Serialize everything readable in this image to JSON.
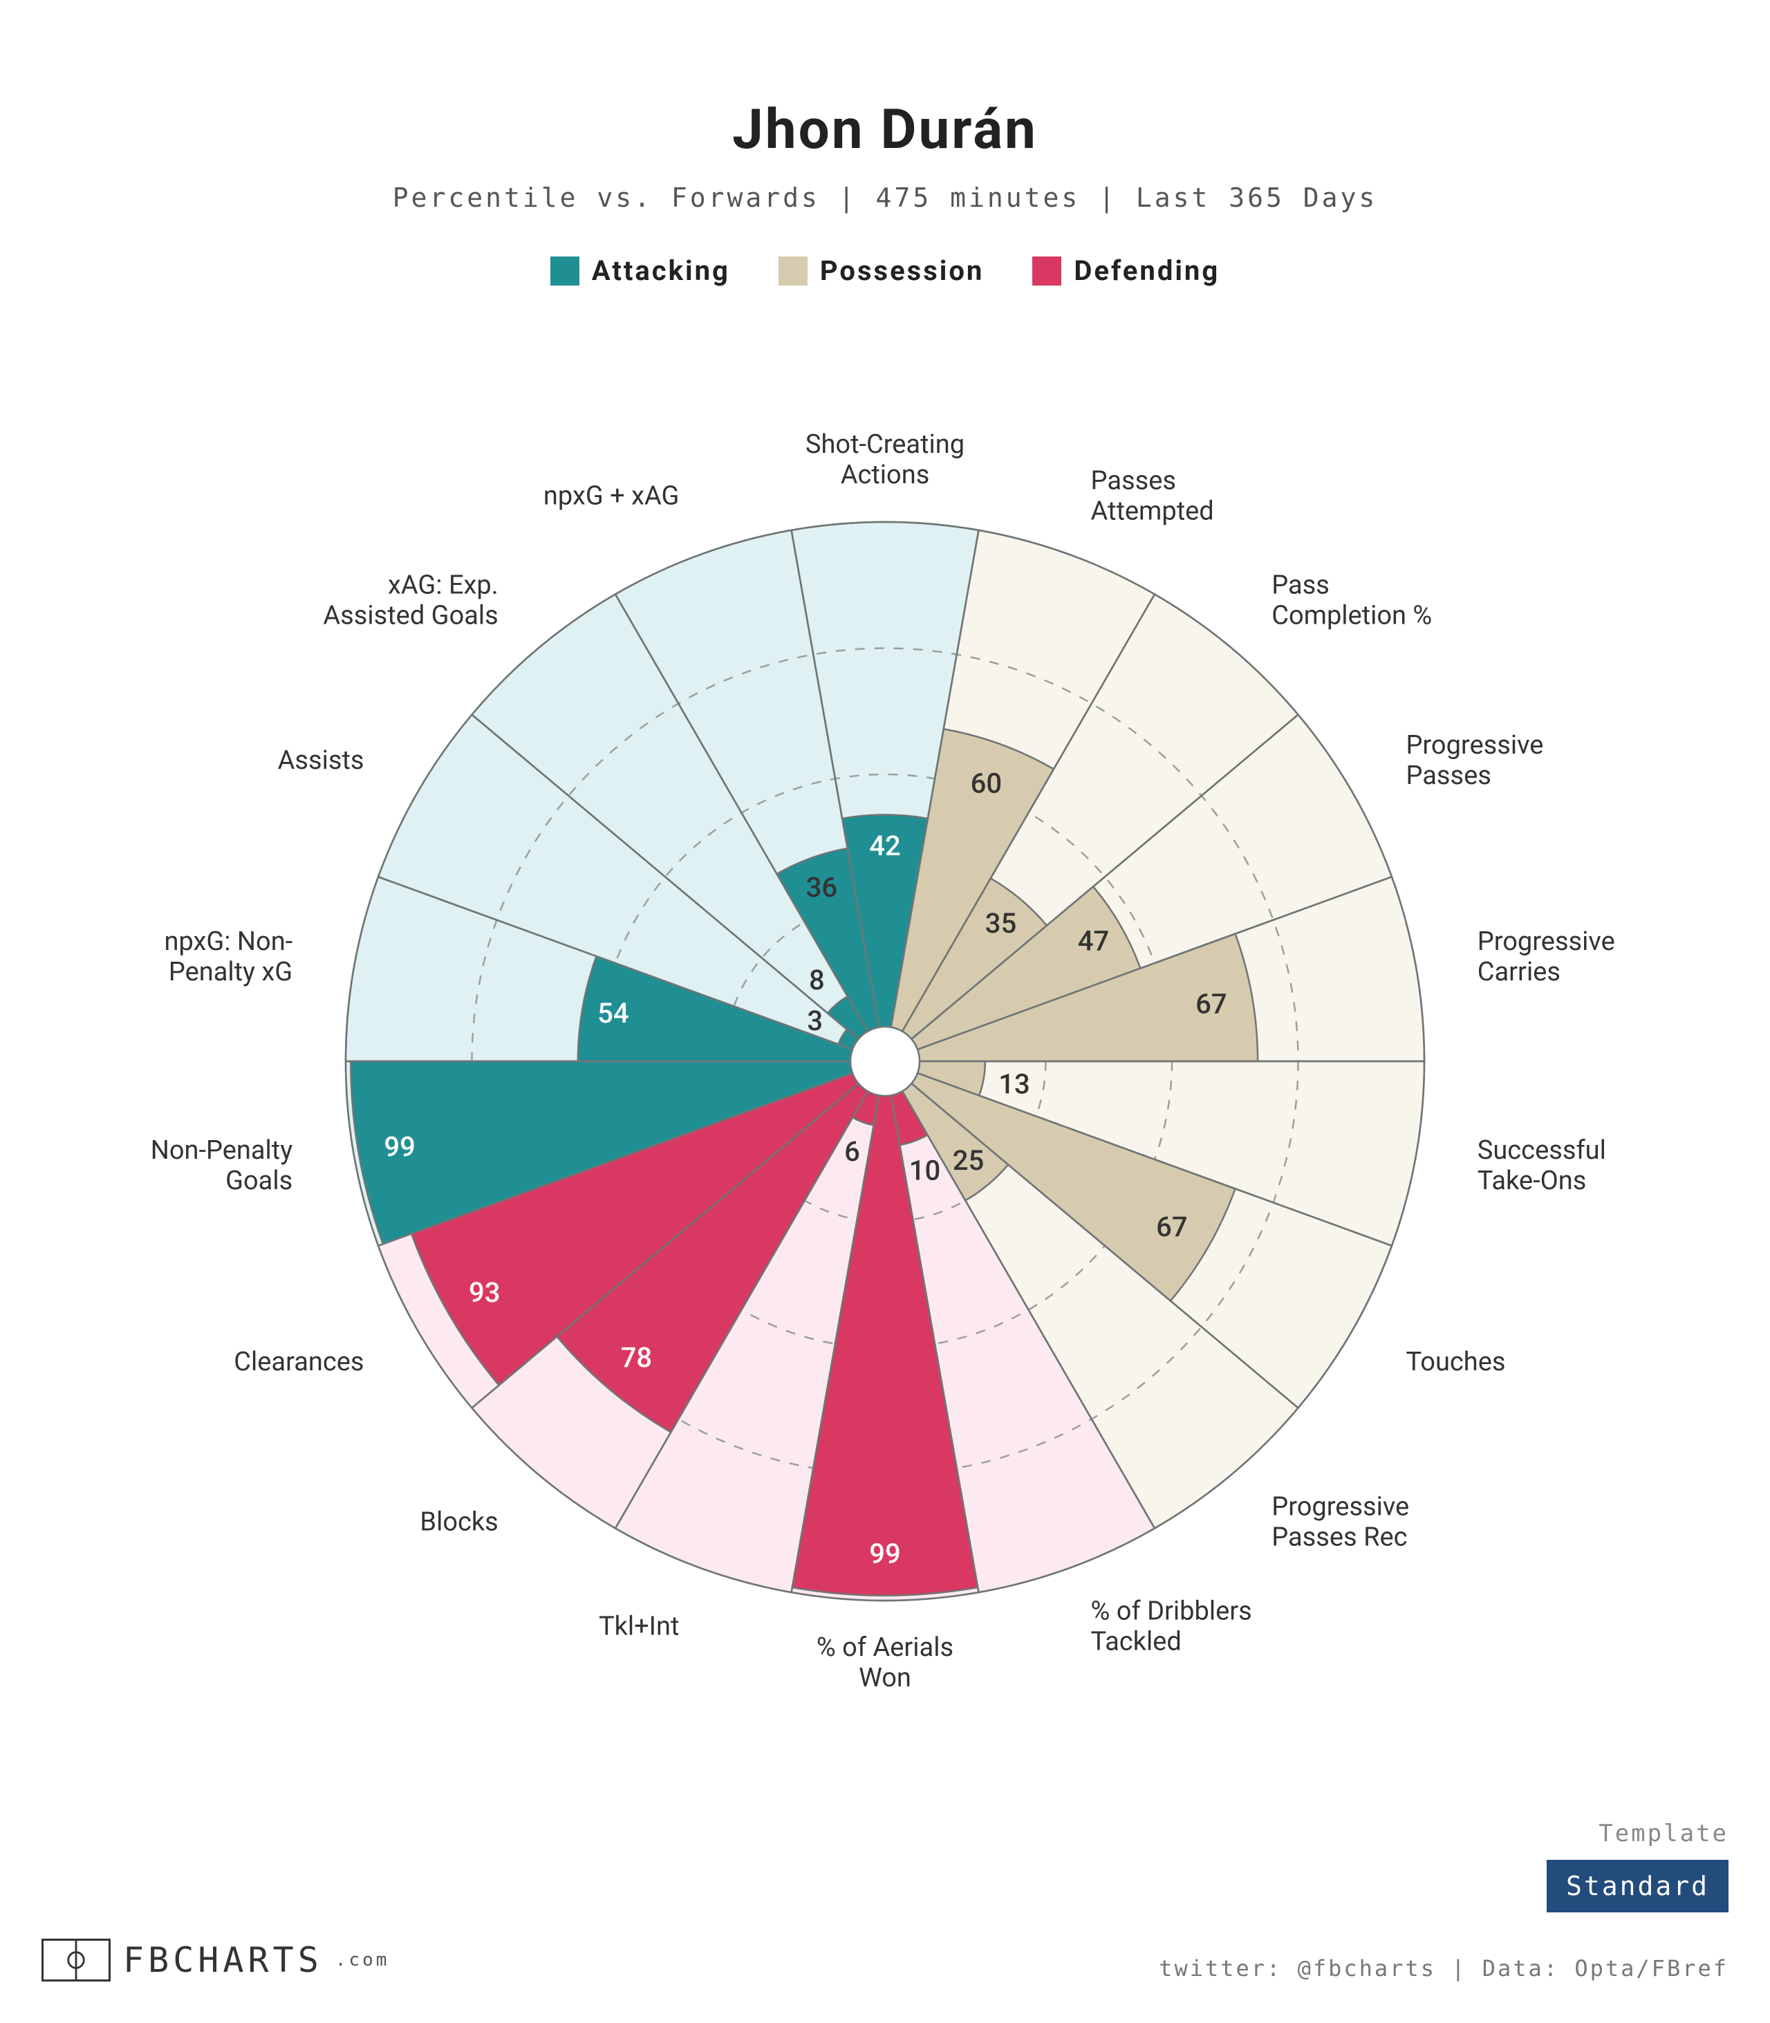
{
  "title": "Jhon Durán",
  "subtitle": "Percentile vs. Forwards | 475 minutes | Last 365 Days",
  "legend": [
    {
      "label": "Attacking",
      "color": "#1f8f94"
    },
    {
      "label": "Possession",
      "color": "#d6cbae"
    },
    {
      "label": "Defending",
      "color": "#d93862"
    }
  ],
  "chart": {
    "type": "polar-bar-pizza",
    "background": "#ffffff",
    "outer_radius": 780,
    "inner_hole_radius": 50,
    "grid_color": "#9aa0a0",
    "grid_dash": "14,14",
    "grid_rings": [
      25,
      50,
      75,
      100
    ],
    "value_fontsize": 40,
    "label_fontsize": 38,
    "label_offset": 90,
    "slice_stroke": "#6f7575",
    "slice_stroke_width": 2.5,
    "categories": [
      {
        "group": "attacking",
        "bg": "#dff1f2",
        "fg": "#1f8f94"
      },
      {
        "group": "possession",
        "bg": "#f8f5ec",
        "fg": "#d6cbae"
      },
      {
        "group": "defending",
        "bg": "#fde9f0",
        "fg": "#d93862"
      }
    ],
    "slices": [
      {
        "label": "Shot-Creating Actions",
        "value": 42,
        "group": "attacking"
      },
      {
        "label": "Passes Attempted",
        "value": 60,
        "group": "possession"
      },
      {
        "label": "Pass Completion %",
        "value": 35,
        "group": "possession"
      },
      {
        "label": "Progressive Passes",
        "value": 47,
        "group": "possession"
      },
      {
        "label": "Progressive Carries",
        "value": 67,
        "group": "possession"
      },
      {
        "label": "Successful Take-Ons",
        "value": 13,
        "group": "possession"
      },
      {
        "label": "Touches",
        "value": 67,
        "group": "possession"
      },
      {
        "label": "Progressive Passes Rec",
        "value": 25,
        "group": "possession"
      },
      {
        "label": "% of Dribblers Tackled",
        "value": 10,
        "group": "defending"
      },
      {
        "label": "% of Aerials Won",
        "value": 99,
        "group": "defending"
      },
      {
        "label": "Tkl+Int",
        "value": 6,
        "group": "defending"
      },
      {
        "label": "Blocks",
        "value": 78,
        "group": "defending"
      },
      {
        "label": "Clearances",
        "value": 93,
        "group": "defending"
      },
      {
        "label": "Non-Penalty Goals",
        "value": 99,
        "group": "attacking",
        "override_defending_bg": true,
        "defending_value": 99
      },
      {
        "label": "npxG: Non-Penalty xG",
        "value": 54,
        "group": "attacking"
      },
      {
        "label": "Assists",
        "value": 3,
        "group": "attacking"
      },
      {
        "label": "xAG: Exp. Assisted Goals",
        "value": 8,
        "group": "attacking"
      },
      {
        "label": "npxG + xAG",
        "value": 36,
        "group": "attacking"
      }
    ],
    "first_slice_index_at_top_center": 0,
    "dual_slice": {
      "index": 13,
      "bottom_group": "defending",
      "bottom_value": 99,
      "top_group": "attacking",
      "top_value": 99
    },
    "label_wraps": {
      "Shot-Creating Actions": [
        "Shot-Creating",
        "Actions"
      ],
      "Passes Attempted": [
        "Passes",
        "Attempted"
      ],
      "Pass Completion %": [
        "Pass",
        "Completion %"
      ],
      "Progressive Passes": [
        "Progressive",
        "Passes"
      ],
      "Progressive Carries": [
        "Progressive",
        "Carries"
      ],
      "Successful Take-Ons": [
        "Successful",
        "Take-Ons"
      ],
      "Progressive Passes Rec": [
        "Progressive",
        "Passes Rec"
      ],
      "% of Dribblers Tackled": [
        "% of Dribblers",
        "Tackled"
      ],
      "% of Aerials Won": [
        "% of Aerials",
        "Won"
      ],
      "Non-Penalty Goals": [
        "Non-Penalty",
        "Goals"
      ],
      "npxG: Non-Penalty xG": [
        "npxG: Non-",
        "Penalty xG"
      ],
      "xAG: Exp. Assisted Goals": [
        "xAG: Exp.",
        "Assisted Goals"
      ]
    }
  },
  "template": {
    "label": "Template",
    "value": "Standard",
    "badge_bg": "#234b7c",
    "badge_fg": "#ffffff"
  },
  "brand": {
    "name": "FBCHARTS",
    "suffix": ".com"
  },
  "credits": "twitter: @fbcharts | Data: Opta/FBref"
}
